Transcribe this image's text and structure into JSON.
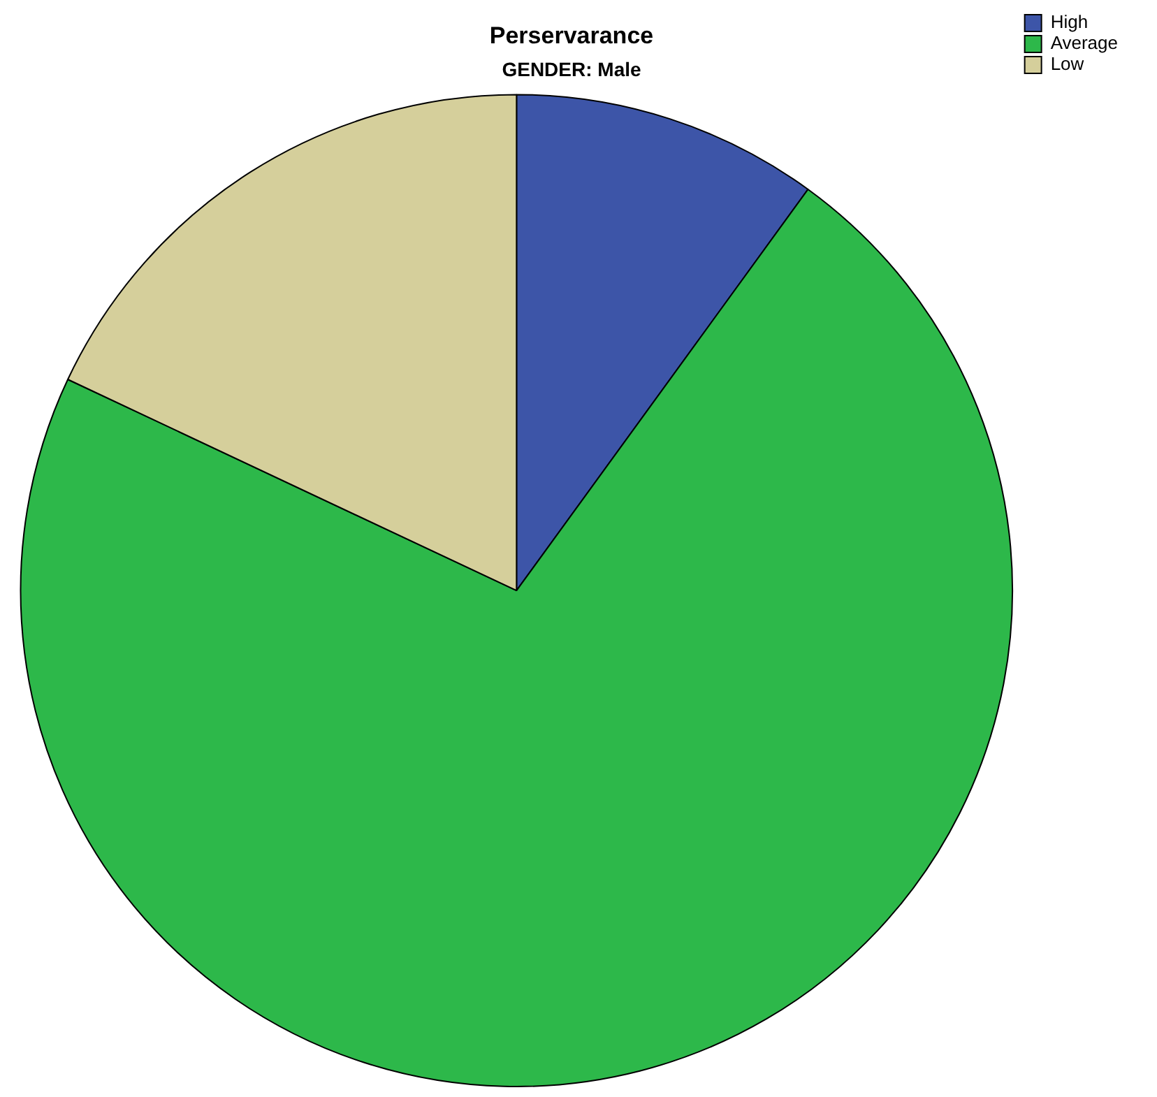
{
  "chart_data": {
    "type": "pie",
    "title": "Perservarance",
    "subtitle": "GENDER: Male",
    "categories": [
      "High",
      "Average",
      "Low"
    ],
    "values": [
      10,
      72,
      18
    ],
    "colors": [
      "#3d55a8",
      "#2db84a",
      "#d5cf9b"
    ],
    "legend": "top right"
  }
}
